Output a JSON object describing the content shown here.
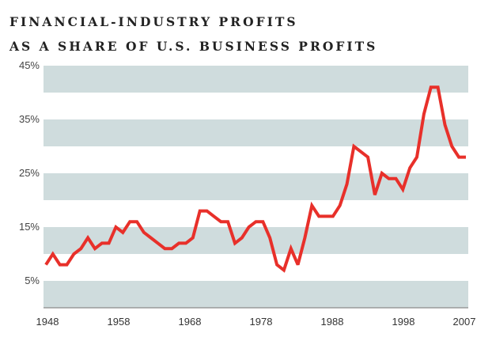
{
  "chart_data": {
    "type": "line",
    "title": "FINANCIAL-INDUSTRY PROFITS",
    "subtitle": "AS A SHARE OF U.S. BUSINESS PROFITS",
    "xlabel": "",
    "ylabel": "",
    "ylim": [
      0,
      45
    ],
    "xlim": [
      1948,
      2008
    ],
    "y_ticks": [
      {
        "value": 45,
        "label": "45%"
      },
      {
        "value": 35,
        "label": "35%"
      },
      {
        "value": 25,
        "label": "25%"
      },
      {
        "value": 15,
        "label": "15%"
      },
      {
        "value": 5,
        "label": "5%"
      }
    ],
    "x_ticks": [
      {
        "value": 1948,
        "label": "1948"
      },
      {
        "value": 1958,
        "label": "1958"
      },
      {
        "value": 1968,
        "label": "1968"
      },
      {
        "value": 1978,
        "label": "1978"
      },
      {
        "value": 1988,
        "label": "1988"
      },
      {
        "value": 1998,
        "label": "1998"
      },
      {
        "value": 2007,
        "label": "2007"
      }
    ],
    "bands": [
      [
        40,
        45
      ],
      [
        30,
        35
      ],
      [
        20,
        25
      ],
      [
        10,
        15
      ],
      [
        0,
        5
      ]
    ],
    "grid": false,
    "legend": "none",
    "series": [
      {
        "name": "Financial-industry share of U.S. business profits (%)",
        "color": "#e8302a",
        "x": [
          1948,
          1949,
          1950,
          1951,
          1952,
          1953,
          1954,
          1955,
          1956,
          1957,
          1958,
          1959,
          1960,
          1961,
          1962,
          1963,
          1964,
          1965,
          1966,
          1967,
          1968,
          1969,
          1970,
          1971,
          1972,
          1973,
          1974,
          1975,
          1976,
          1977,
          1978,
          1979,
          1980,
          1981,
          1982,
          1983,
          1984,
          1985,
          1986,
          1987,
          1988,
          1989,
          1990,
          1991,
          1992,
          1993,
          1994,
          1995,
          1996,
          1997,
          1998,
          1999,
          2000,
          2001,
          2002,
          2003,
          2004,
          2005,
          2006,
          2007,
          2008
        ],
        "values": [
          8,
          10,
          8,
          8,
          10,
          11,
          13,
          11,
          12,
          12,
          15,
          14,
          16,
          16,
          14,
          13,
          12,
          11,
          11,
          12,
          12,
          13,
          18,
          18,
          17,
          16,
          16,
          12,
          13,
          15,
          16,
          16,
          13,
          8,
          7,
          11,
          8,
          13,
          19,
          17,
          17,
          17,
          19,
          23,
          30,
          29,
          28,
          21,
          25,
          24,
          24,
          22,
          26,
          28,
          36,
          41,
          41,
          34,
          30,
          28,
          28
        ]
      }
    ]
  },
  "colors": {
    "band": "#cfdcdd",
    "line": "#e8302a",
    "axis": "#8a8a8a"
  }
}
